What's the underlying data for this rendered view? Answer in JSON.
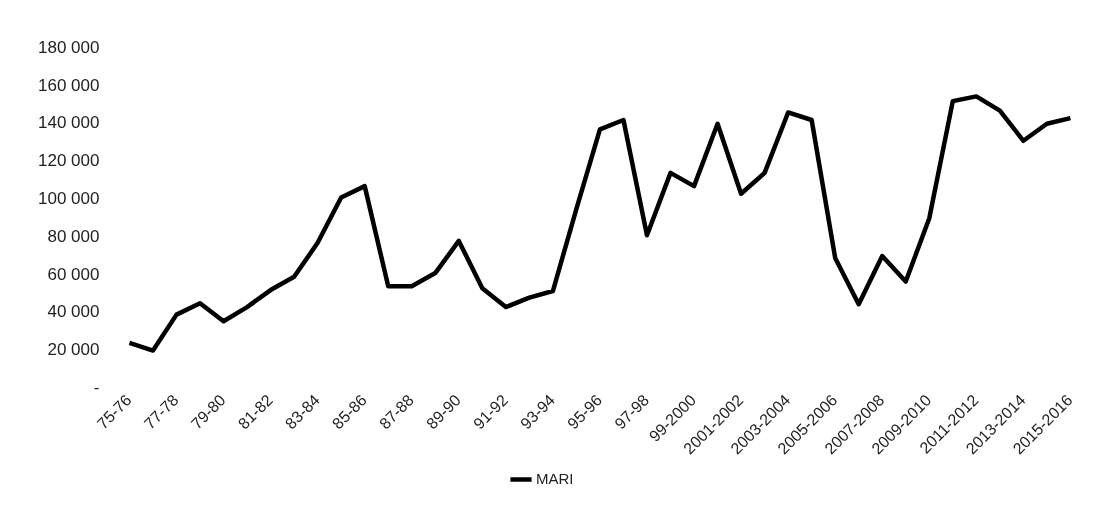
{
  "chart_data": {
    "type": "line",
    "categories": [
      "75-76",
      null,
      "77-78",
      null,
      "79-80",
      null,
      "81-82",
      null,
      "83-84",
      null,
      "85-86",
      null,
      "87-88",
      null,
      "89-90",
      null,
      "91-92",
      null,
      "93-94",
      null,
      "95-96",
      null,
      "97-98",
      null,
      "99-2000",
      null,
      "2001-2002",
      null,
      "2003-2004",
      null,
      "2005-2006",
      null,
      "2007-2008",
      null,
      "2009-2010",
      null,
      "2011-2012",
      null,
      "2013-2014",
      null,
      "2015-2016"
    ],
    "series": [
      {
        "name": "MARI",
        "color": "#000000",
        "values": [
          24000,
          20000,
          39000,
          45000,
          35500,
          43000,
          52000,
          59000,
          77000,
          101000,
          107000,
          54000,
          54000,
          61000,
          78000,
          53000,
          43000,
          48000,
          51500,
          95000,
          137000,
          142000,
          81000,
          114000,
          107000,
          140000,
          103000,
          114000,
          146000,
          142000,
          69000,
          44500,
          70000,
          56500,
          90000,
          152000,
          154500,
          147000,
          131000,
          140000,
          143000
        ]
      }
    ],
    "ylim": [
      0,
      180000
    ],
    "yticks": [
      {
        "value": 0,
        "label": "-"
      },
      {
        "value": 20000,
        "label": "20 000"
      },
      {
        "value": 40000,
        "label": "40 000"
      },
      {
        "value": 60000,
        "label": "60 000"
      },
      {
        "value": 80000,
        "label": "80 000"
      },
      {
        "value": 100000,
        "label": "100 000"
      },
      {
        "value": 120000,
        "label": "120 000"
      },
      {
        "value": 140000,
        "label": "140 000"
      },
      {
        "value": 160000,
        "label": "160 000"
      },
      {
        "value": 180000,
        "label": "180 000"
      }
    ],
    "grid": false,
    "legend": "bottom",
    "marker": "none",
    "line_style": "solid"
  }
}
